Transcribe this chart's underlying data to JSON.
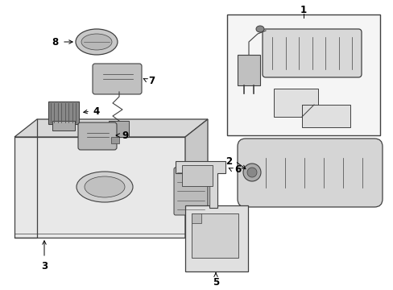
{
  "bg_color": "#ffffff",
  "line_color": "#404040",
  "fig_width": 4.89,
  "fig_height": 3.6,
  "dpi": 100,
  "lw": 0.8,
  "label_fontsize": 8.5
}
